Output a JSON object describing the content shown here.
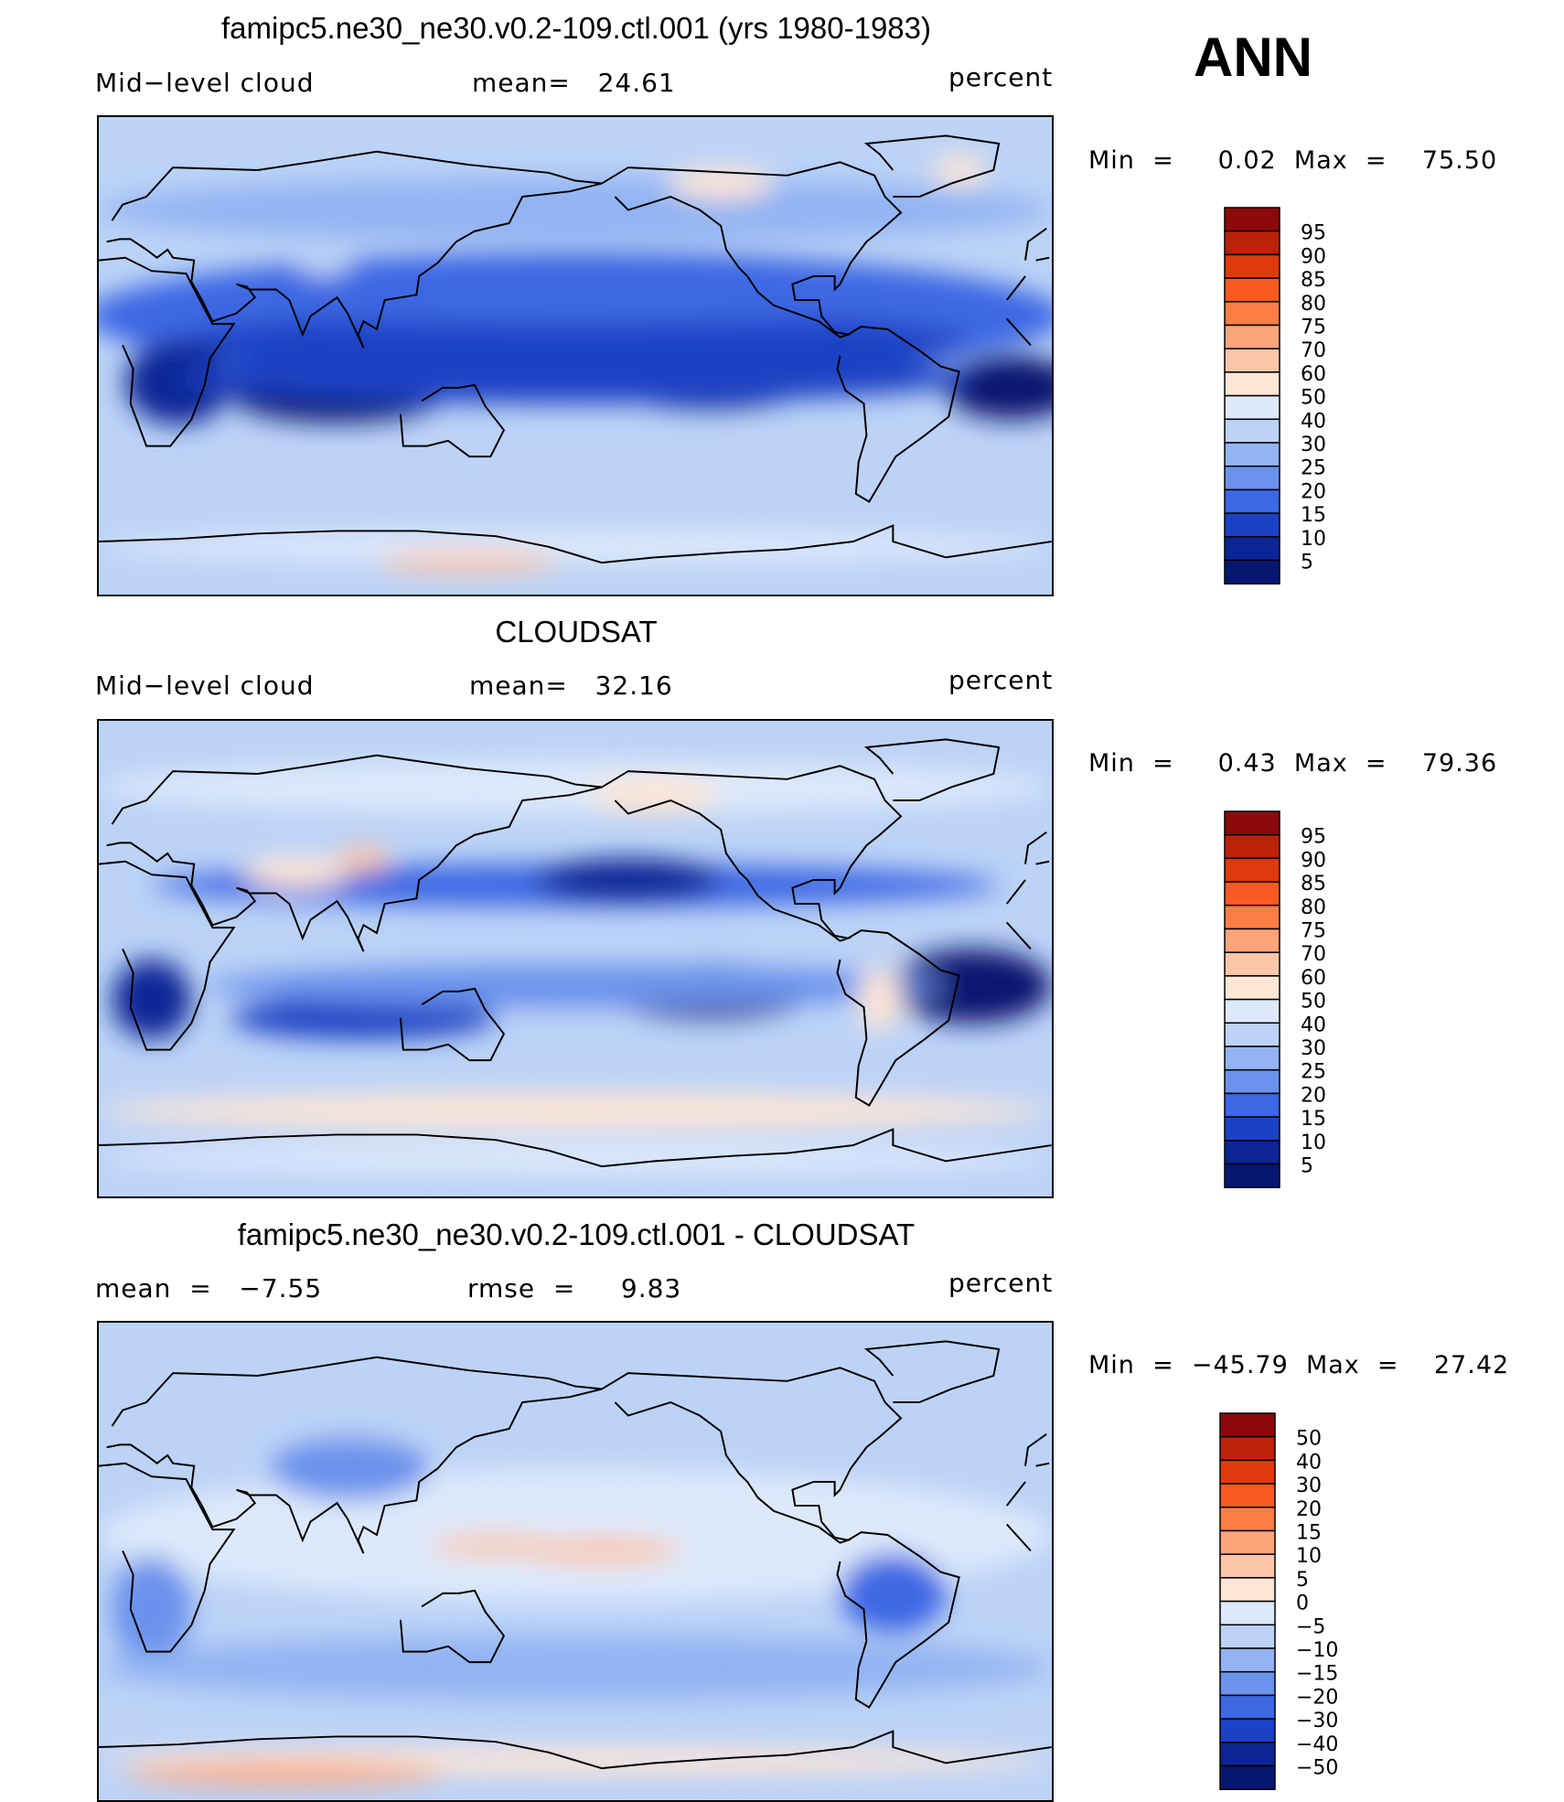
{
  "season": "ANN",
  "panels": [
    {
      "title": "famipc5.ne30_ne30.v0.2-109.ctl.001 (yrs 1980-1983)",
      "left_label": "Mid−level cloud",
      "stat1": "mean=   24.61",
      "stat2": "",
      "units": "percent",
      "minmax": "Min  =     0.02  Max  =    75.50",
      "field_type": "model",
      "colorbar": {
        "levels": [
          "95",
          "90",
          "85",
          "80",
          "75",
          "70",
          "60",
          "50",
          "40",
          "30",
          "25",
          "20",
          "15",
          "10",
          "5"
        ],
        "colors": [
          "#8c0a0a",
          "#bb2208",
          "#e03a0c",
          "#fa5a22",
          "#fc7e45",
          "#fca47a",
          "#fdc6a8",
          "#fee6d6",
          "#dde9fb",
          "#bcd3f7",
          "#92b4f3",
          "#6b92ec",
          "#3c68e4",
          "#1b42c4",
          "#0b2596",
          "#071771"
        ]
      }
    },
    {
      "title": "CLOUDSAT",
      "left_label": "Mid−level cloud",
      "stat1": "mean=   32.16",
      "stat2": "",
      "units": "percent",
      "minmax": "Min  =     0.43  Max  =    79.36",
      "field_type": "obs",
      "colorbar": {
        "levels": [
          "95",
          "90",
          "85",
          "80",
          "75",
          "70",
          "60",
          "50",
          "40",
          "30",
          "25",
          "20",
          "15",
          "10",
          "5"
        ],
        "colors": [
          "#8c0a0a",
          "#bb2208",
          "#e03a0c",
          "#fa5a22",
          "#fc7e45",
          "#fca47a",
          "#fdc6a8",
          "#fee6d6",
          "#dde9fb",
          "#bcd3f7",
          "#92b4f3",
          "#6b92ec",
          "#3c68e4",
          "#1b42c4",
          "#0b2596",
          "#071771"
        ]
      }
    },
    {
      "title": "famipc5.ne30_ne30.v0.2-109.ctl.001 - CLOUDSAT",
      "left_label": "mean  =   −7.55",
      "stat1": "rmse  =     9.83",
      "stat2": "",
      "units": "percent",
      "minmax": "Min  =  −45.79  Max  =    27.42",
      "field_type": "diff",
      "colorbar": {
        "levels": [
          "50",
          "40",
          "30",
          "20",
          "15",
          "10",
          "5",
          "0",
          "−5",
          "−10",
          "−15",
          "−20",
          "−30",
          "−40",
          "−50"
        ],
        "colors": [
          "#8c0a0a",
          "#bb2208",
          "#e03a0c",
          "#fa5a22",
          "#fc7e45",
          "#fca47a",
          "#fdc6a8",
          "#fee6d6",
          "#dde9fb",
          "#bcd3f7",
          "#92b4f3",
          "#6b92ec",
          "#3c68e4",
          "#1b42c4",
          "#0b2596",
          "#071771"
        ]
      }
    }
  ]
}
